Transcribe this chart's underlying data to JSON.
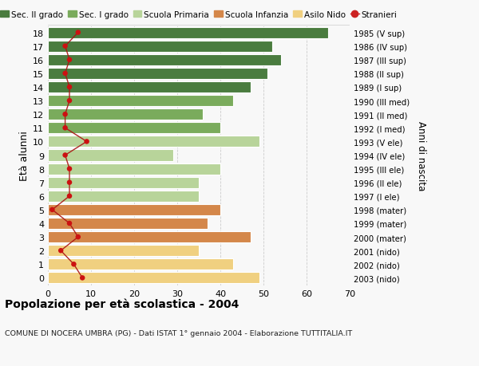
{
  "ages": [
    18,
    17,
    16,
    15,
    14,
    13,
    12,
    11,
    10,
    9,
    8,
    7,
    6,
    5,
    4,
    3,
    2,
    1,
    0
  ],
  "right_labels": [
    "1985 (V sup)",
    "1986 (IV sup)",
    "1987 (III sup)",
    "1988 (II sup)",
    "1989 (I sup)",
    "1990 (III med)",
    "1991 (II med)",
    "1992 (I med)",
    "1993 (V ele)",
    "1994 (IV ele)",
    "1995 (III ele)",
    "1996 (II ele)",
    "1997 (I ele)",
    "1998 (mater)",
    "1999 (mater)",
    "2000 (mater)",
    "2001 (nido)",
    "2002 (nido)",
    "2003 (nido)"
  ],
  "bar_values": [
    65,
    52,
    54,
    51,
    47,
    43,
    36,
    40,
    49,
    29,
    40,
    35,
    35,
    40,
    37,
    47,
    35,
    43,
    49
  ],
  "bar_colors": [
    "#4a7c3f",
    "#4a7c3f",
    "#4a7c3f",
    "#4a7c3f",
    "#4a7c3f",
    "#7aab5c",
    "#7aab5c",
    "#7aab5c",
    "#b8d49a",
    "#b8d49a",
    "#b8d49a",
    "#b8d49a",
    "#b8d49a",
    "#d4874a",
    "#d4874a",
    "#d4874a",
    "#f0d080",
    "#f0d080",
    "#f0d080"
  ],
  "stranieri_values": [
    7,
    4,
    5,
    4,
    5,
    5,
    4,
    4,
    9,
    4,
    5,
    5,
    5,
    1,
    5,
    7,
    3,
    6,
    8
  ],
  "legend_labels": [
    "Sec. II grado",
    "Sec. I grado",
    "Scuola Primaria",
    "Scuola Infanzia",
    "Asilo Nido",
    "Stranieri"
  ],
  "legend_colors": [
    "#4a7c3f",
    "#7aab5c",
    "#b8d49a",
    "#d4874a",
    "#f0d080",
    "#cc2222"
  ],
  "ylabel_left": "Età alunni",
  "ylabel_right": "Anni di nascita",
  "xlim": [
    0,
    70
  ],
  "xticks": [
    0,
    10,
    20,
    30,
    40,
    50,
    60,
    70
  ],
  "title": "Popolazione per età scolastica - 2004",
  "subtitle": "COMUNE DI NOCERA UMBRA (PG) - Dati ISTAT 1° gennaio 2004 - Elaborazione TUTTITALIA.IT",
  "bg_color": "#f8f8f8",
  "grid_color": "#cccccc"
}
